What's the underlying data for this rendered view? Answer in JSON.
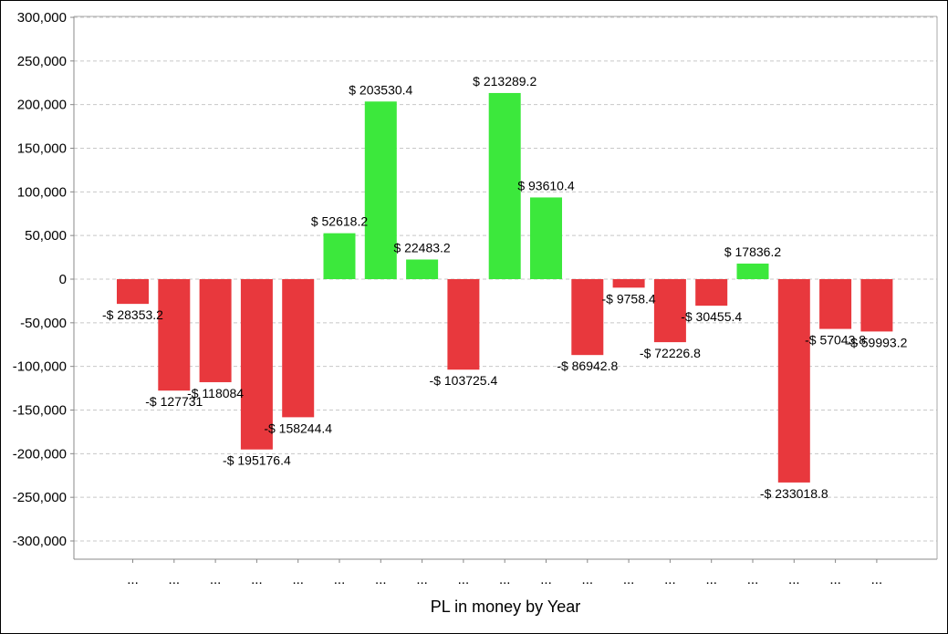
{
  "chart_data": {
    "type": "bar",
    "title": "",
    "xlabel": "PL in money by Year",
    "ylabel": "",
    "ylim": [
      -300000,
      300000
    ],
    "y_ticks": [
      300000,
      250000,
      200000,
      150000,
      100000,
      50000,
      0,
      -50000,
      -100000,
      -150000,
      -200000,
      -250000,
      -300000
    ],
    "y_tick_labels": [
      "300,000",
      "250,000",
      "200,000",
      "150,000",
      "100,000",
      "50,000",
      "0",
      "-50,000",
      "-100,000",
      "-150,000",
      "-200,000",
      "-250,000",
      "-300,000"
    ],
    "grid": true,
    "categories": [
      "...",
      "...",
      "...",
      "...",
      "...",
      "...",
      "...",
      "...",
      "...",
      "...",
      "...",
      "...",
      "...",
      "...",
      "...",
      "...",
      "...",
      "...",
      "..."
    ],
    "values": [
      -28353.2,
      -127731,
      -118084,
      -195176.4,
      -158244.4,
      52618.2,
      203530.4,
      22483.2,
      -103725.4,
      213289.2,
      93610.4,
      -86942.8,
      -9758.4,
      -72226.8,
      -30455.4,
      17836.2,
      -233018.8,
      -57043.8,
      -59993.2
    ],
    "data_labels": [
      "-$ 28353.2",
      "-$ 127731",
      "-$ 118084",
      "-$ 195176.4",
      "-$ 158244.4",
      "$ 52618.2",
      "$ 203530.4",
      "$ 22483.2",
      "-$ 103725.4",
      "$ 213289.2",
      "$ 93610.4",
      "-$ 86942.8",
      "-$ 9758.4",
      "-$ 72226.8",
      "-$ 30455.4",
      "$ 17836.2",
      "-$ 233018.8",
      "-$ 57043.8",
      "-$ 59993.2"
    ],
    "colors": {
      "positive": "#3ce83c",
      "negative": "#e8383d"
    }
  }
}
